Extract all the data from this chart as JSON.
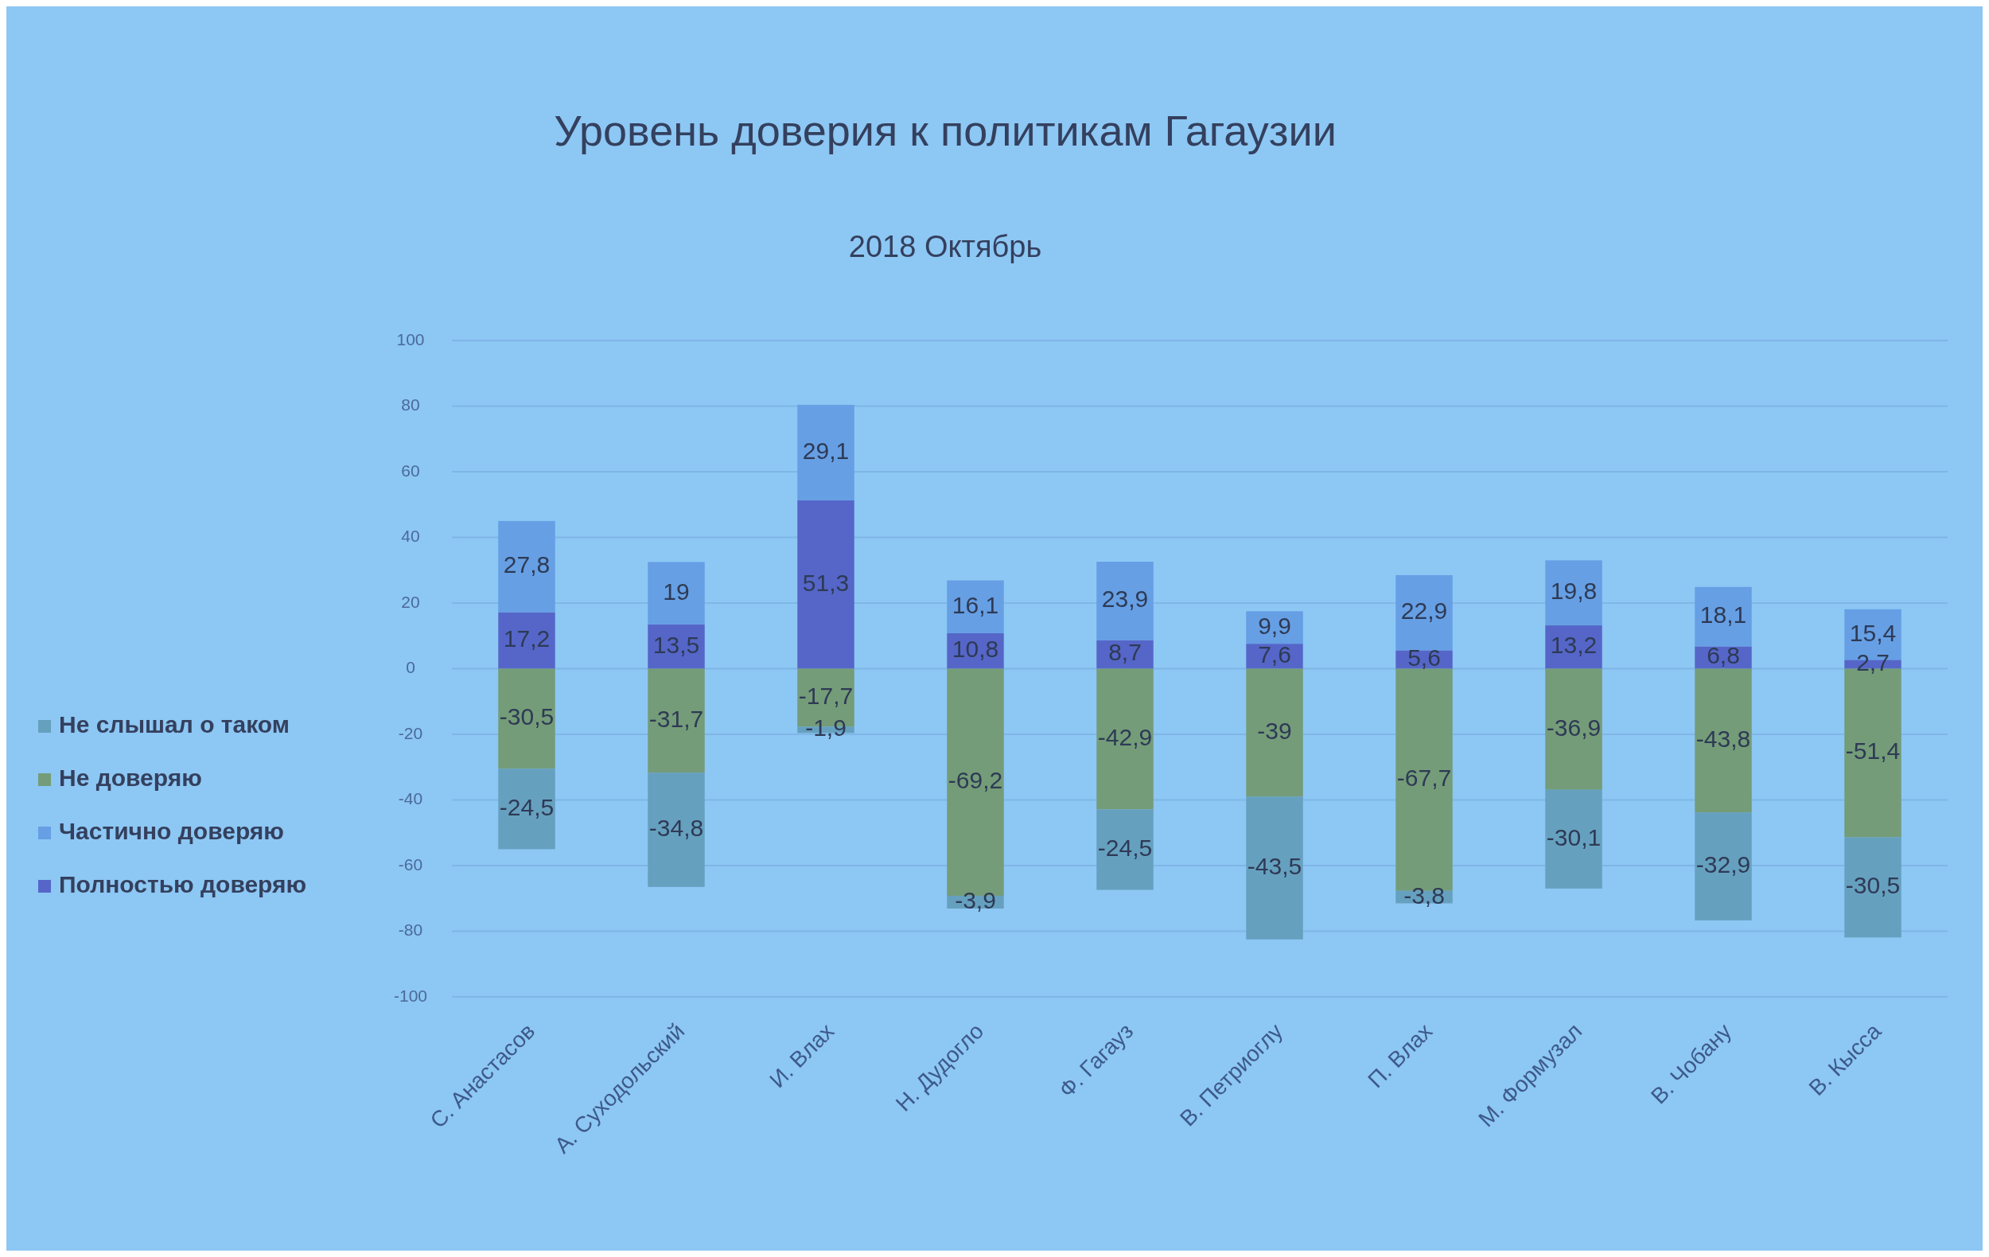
{
  "chart_data": {
    "type": "bar",
    "title": "Уровень доверия к политикам Гагаузии",
    "subtitle": "2018 Октябрь",
    "categories": [
      "С. Анастасов",
      "А. Суходольский",
      "И. Влах",
      "Н. Дудогло",
      "Ф. Гагауз",
      "В. Петриоглу",
      "П. Влах",
      "М. Формузал",
      "В. Чобану",
      "В. Кысса"
    ],
    "stacked": true,
    "ylim": [
      -100,
      100
    ],
    "yticks": [
      -100,
      -80,
      -60,
      -40,
      -20,
      0,
      20,
      40,
      60,
      80,
      100
    ],
    "grid": "y",
    "legend": "left",
    "series": [
      {
        "name": "Полностью доверяю",
        "color": "#5566c8",
        "values": [
          17.2,
          13.5,
          51.3,
          10.8,
          8.7,
          7.6,
          5.6,
          13.2,
          6.8,
          2.7
        ],
        "value_labels": [
          "17,2",
          "13,5",
          "51,3",
          "10,8",
          "8,7",
          "7,6",
          "5,6",
          "13,2",
          "6,8",
          "2,7"
        ]
      },
      {
        "name": "Частично доверяю",
        "color": "#669fe4",
        "values": [
          27.8,
          19,
          29.1,
          16.1,
          23.9,
          9.9,
          22.9,
          19.8,
          18.1,
          15.4
        ],
        "value_labels": [
          "27,8",
          "19",
          "29,1",
          "16,1",
          "23,9",
          "9,9",
          "22,9",
          "19,8",
          "18,1",
          "15,4"
        ]
      },
      {
        "name": "Не доверяю",
        "color": "#749c78",
        "values": [
          -30.5,
          -31.7,
          -17.7,
          -69.2,
          -42.9,
          -39,
          -67.7,
          -36.9,
          -43.8,
          -51.4
        ],
        "value_labels": [
          "-30,5",
          "-31,7",
          "-17,7",
          "-69,2",
          "-42,9",
          "-39",
          "-67,7",
          "-36,9",
          "-43,8",
          "-51,4"
        ]
      },
      {
        "name": "Не слышал о таком",
        "color": "#66a0bf",
        "values": [
          -24.5,
          -34.8,
          -1.9,
          -3.9,
          -24.5,
          -43.5,
          -3.8,
          -30.1,
          -32.9,
          -30.5
        ],
        "value_labels": [
          "-24,5",
          "-34,8",
          "-1,9",
          "-3,9",
          "-24,5",
          "-43,5",
          "-3,8",
          "-30,1",
          "-32,9",
          "-30,5"
        ]
      }
    ]
  }
}
